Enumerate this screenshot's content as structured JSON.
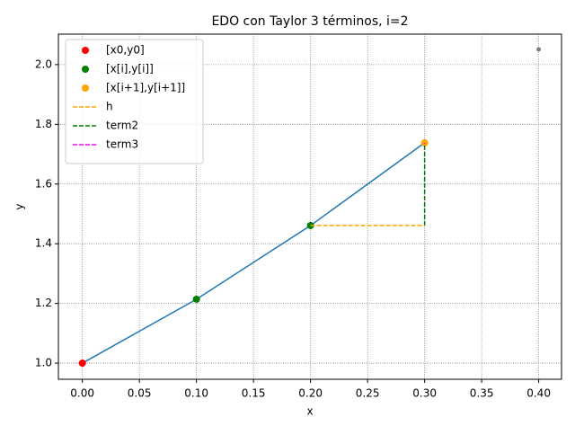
{
  "chart_data": {
    "type": "line",
    "title": "EDO con Taylor 3 términos, i=2",
    "xlabel": "x",
    "ylabel": "y",
    "xlim": [
      -0.021,
      0.42
    ],
    "ylim": [
      0.946,
      2.102
    ],
    "xticks": [
      {
        "value": 0,
        "label": "0.00"
      },
      {
        "value": 0.05,
        "label": "0.05"
      },
      {
        "value": 0.1,
        "label": "0.10"
      },
      {
        "value": 0.15,
        "label": "0.15"
      },
      {
        "value": 0.2,
        "label": "0.20"
      },
      {
        "value": 0.25,
        "label": "0.25"
      },
      {
        "value": 0.3,
        "label": "0.30"
      },
      {
        "value": 0.35,
        "label": "0.35"
      },
      {
        "value": 0.4,
        "label": "0.40"
      }
    ],
    "yticks": [
      {
        "value": 1,
        "label": "1.0"
      },
      {
        "value": 1.2,
        "label": "1.2"
      },
      {
        "value": 1.4,
        "label": "1.4"
      },
      {
        "value": 1.6,
        "label": "1.6"
      },
      {
        "value": 1.8,
        "label": "1.8"
      },
      {
        "value": 2,
        "label": "2.0"
      }
    ],
    "grid": true,
    "legend": "upper left",
    "series": [
      {
        "color": "#1f77b4",
        "style": "line",
        "x": [
          0,
          0.1,
          0.2,
          0.3
        ],
        "values": [
          1.0,
          1.214,
          1.461,
          1.738
        ]
      },
      {
        "name": "[x0,y0]",
        "color": "#ff0000",
        "style": "marker",
        "x": [
          0
        ],
        "values": [
          1.0
        ]
      },
      {
        "name": "[x[i],y[i]]",
        "color": "#008000",
        "style": "marker",
        "x": [
          0.1,
          0.2
        ],
        "values": [
          1.214,
          1.461
        ]
      },
      {
        "name": "[x[i+1],y[i+1]]",
        "color": "#ffa500",
        "style": "marker",
        "x": [
          0.3
        ],
        "values": [
          1.738
        ]
      },
      {
        "name": "h",
        "color": "#ffa500",
        "style": "dashed",
        "x": [
          0.2,
          0.3
        ],
        "values": [
          1.461,
          1.461
        ]
      },
      {
        "name": "term2",
        "color": "#008000",
        "style": "dashed",
        "x": [
          0.3,
          0.3
        ],
        "values": [
          1.461,
          1.735
        ]
      },
      {
        "name": "term3",
        "color": "#ff00ff",
        "style": "dashed",
        "x": [
          0.3,
          0.3
        ],
        "values": [
          1.735,
          1.738
        ]
      },
      {
        "color": "#808080",
        "style": "small-marker",
        "x": [
          0.4
        ],
        "values": [
          2.051
        ]
      }
    ]
  }
}
